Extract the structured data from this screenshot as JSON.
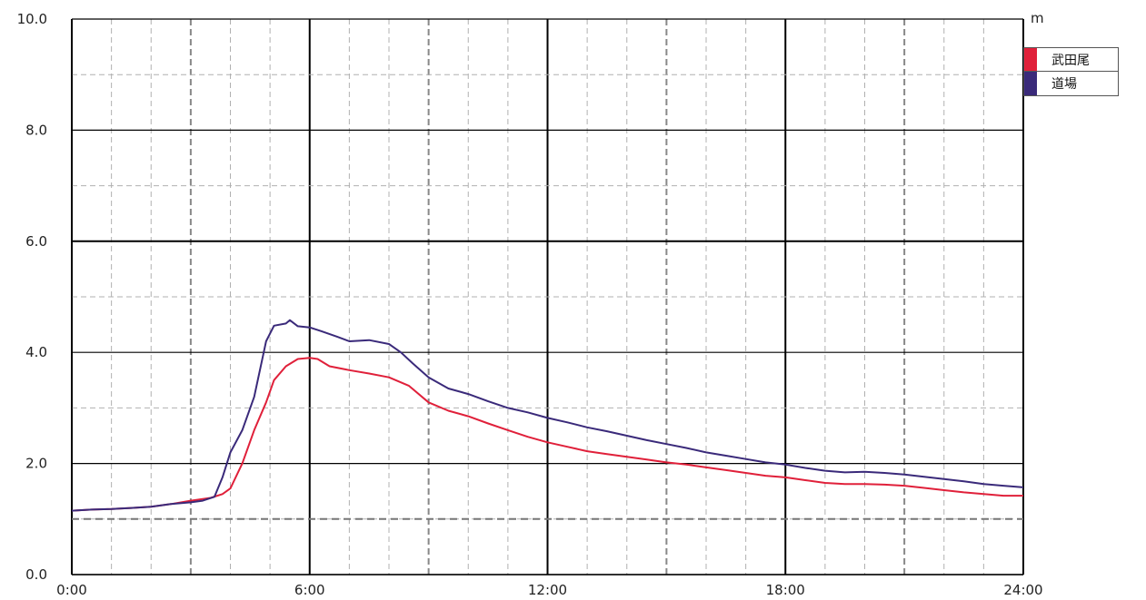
{
  "chart_data": {
    "type": "line",
    "title": "",
    "xlabel": "",
    "ylabel": "",
    "unit": "m",
    "xlim": [
      0,
      24
    ],
    "ylim": [
      0,
      10
    ],
    "x_ticks": [
      {
        "value": 0,
        "label": "0:00"
      },
      {
        "value": 6,
        "label": "6:00"
      },
      {
        "value": 12,
        "label": "12:00"
      },
      {
        "value": 18,
        "label": "18:00"
      },
      {
        "value": 24,
        "label": "24:00"
      }
    ],
    "y_ticks": [
      {
        "value": 0,
        "label": "0.0"
      },
      {
        "value": 2,
        "label": "2.0"
      },
      {
        "value": 4,
        "label": "4.0"
      },
      {
        "value": 6,
        "label": "6.0"
      },
      {
        "value": 8,
        "label": "8.0"
      },
      {
        "value": 10,
        "label": "10.0"
      }
    ],
    "reference_lines": [
      {
        "y": 1.0,
        "style": "dashed"
      }
    ],
    "grid": true,
    "legend_position": "top-right",
    "series": [
      {
        "name": "武田尾",
        "color": "#e0203a",
        "points": [
          [
            0,
            1.15
          ],
          [
            0.5,
            1.17
          ],
          [
            1,
            1.18
          ],
          [
            1.5,
            1.2
          ],
          [
            2,
            1.22
          ],
          [
            2.5,
            1.27
          ],
          [
            3,
            1.33
          ],
          [
            3.5,
            1.38
          ],
          [
            3.8,
            1.45
          ],
          [
            4.0,
            1.55
          ],
          [
            4.3,
            2.0
          ],
          [
            4.6,
            2.6
          ],
          [
            4.9,
            3.1
          ],
          [
            5.1,
            3.5
          ],
          [
            5.4,
            3.75
          ],
          [
            5.7,
            3.88
          ],
          [
            6.0,
            3.9
          ],
          [
            6.2,
            3.88
          ],
          [
            6.5,
            3.75
          ],
          [
            7,
            3.68
          ],
          [
            7.5,
            3.62
          ],
          [
            8,
            3.55
          ],
          [
            8.5,
            3.4
          ],
          [
            9,
            3.1
          ],
          [
            9.5,
            2.95
          ],
          [
            10,
            2.85
          ],
          [
            10.5,
            2.72
          ],
          [
            11,
            2.6
          ],
          [
            11.5,
            2.48
          ],
          [
            12,
            2.38
          ],
          [
            12.5,
            2.3
          ],
          [
            13,
            2.22
          ],
          [
            13.5,
            2.17
          ],
          [
            14,
            2.12
          ],
          [
            14.5,
            2.07
          ],
          [
            15,
            2.02
          ],
          [
            15.5,
            1.98
          ],
          [
            16,
            1.93
          ],
          [
            16.5,
            1.88
          ],
          [
            17,
            1.83
          ],
          [
            17.5,
            1.78
          ],
          [
            18,
            1.75
          ],
          [
            18.5,
            1.7
          ],
          [
            19,
            1.65
          ],
          [
            19.5,
            1.63
          ],
          [
            20,
            1.63
          ],
          [
            20.5,
            1.62
          ],
          [
            21,
            1.6
          ],
          [
            21.5,
            1.56
          ],
          [
            22,
            1.52
          ],
          [
            22.5,
            1.48
          ],
          [
            23,
            1.45
          ],
          [
            23.5,
            1.42
          ],
          [
            24,
            1.42
          ]
        ]
      },
      {
        "name": "道場",
        "color": "#3a2a7a",
        "points": [
          [
            0,
            1.15
          ],
          [
            0.5,
            1.17
          ],
          [
            1,
            1.18
          ],
          [
            1.5,
            1.2
          ],
          [
            2,
            1.22
          ],
          [
            2.5,
            1.27
          ],
          [
            3,
            1.3
          ],
          [
            3.3,
            1.33
          ],
          [
            3.6,
            1.4
          ],
          [
            3.8,
            1.75
          ],
          [
            4.0,
            2.2
          ],
          [
            4.3,
            2.6
          ],
          [
            4.6,
            3.2
          ],
          [
            4.9,
            4.2
          ],
          [
            5.1,
            4.48
          ],
          [
            5.4,
            4.52
          ],
          [
            5.5,
            4.58
          ],
          [
            5.7,
            4.47
          ],
          [
            6.0,
            4.45
          ],
          [
            6.3,
            4.38
          ],
          [
            6.7,
            4.28
          ],
          [
            7,
            4.2
          ],
          [
            7.5,
            4.22
          ],
          [
            8,
            4.15
          ],
          [
            8.3,
            4.0
          ],
          [
            8.6,
            3.8
          ],
          [
            9,
            3.55
          ],
          [
            9.5,
            3.35
          ],
          [
            10,
            3.25
          ],
          [
            10.5,
            3.12
          ],
          [
            11,
            3.0
          ],
          [
            11.5,
            2.92
          ],
          [
            12,
            2.82
          ],
          [
            12.5,
            2.74
          ],
          [
            13,
            2.65
          ],
          [
            13.5,
            2.58
          ],
          [
            14,
            2.5
          ],
          [
            14.5,
            2.42
          ],
          [
            15,
            2.35
          ],
          [
            15.5,
            2.28
          ],
          [
            16,
            2.2
          ],
          [
            16.5,
            2.14
          ],
          [
            17,
            2.08
          ],
          [
            17.5,
            2.02
          ],
          [
            18,
            1.98
          ],
          [
            18.5,
            1.92
          ],
          [
            19,
            1.87
          ],
          [
            19.5,
            1.84
          ],
          [
            20,
            1.85
          ],
          [
            20.5,
            1.83
          ],
          [
            21,
            1.8
          ],
          [
            21.5,
            1.76
          ],
          [
            22,
            1.72
          ],
          [
            22.5,
            1.68
          ],
          [
            23,
            1.63
          ],
          [
            23.5,
            1.6
          ],
          [
            24,
            1.57
          ]
        ]
      }
    ]
  }
}
